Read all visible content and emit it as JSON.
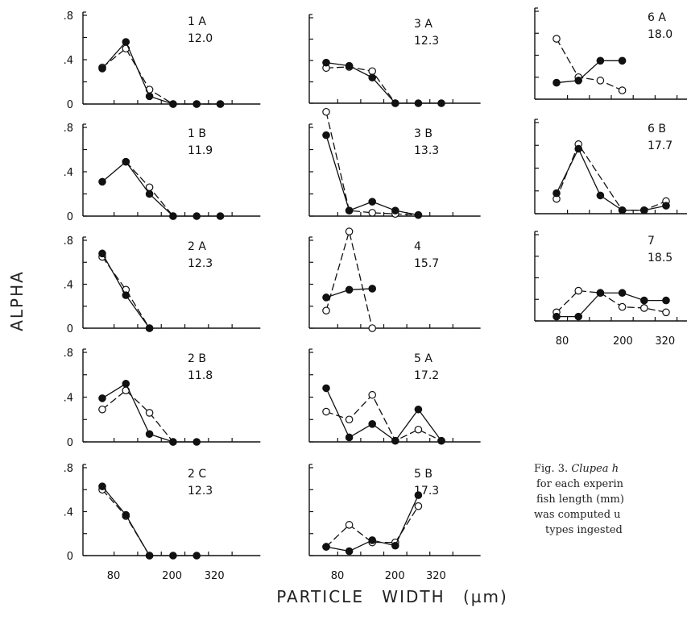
{
  "figure": {
    "ylabel": "ALPHA",
    "xlabel": "PARTICLE WIDTH (µm)",
    "y_ticks": [
      ".8",
      ".4",
      "0"
    ],
    "x_ticks": [
      "80",
      "200",
      "320"
    ],
    "caption": {
      "line1_prefix": "Fig. 3. ",
      "line1_italic": "Clupea h",
      "line2": "for each experin",
      "line3": "fish length (mm)",
      "line4": "was computed u",
      "line5": "types ingested"
    }
  },
  "chart_data": [
    {
      "id": "1A",
      "length": "12.0",
      "type": "line",
      "series": [
        {
          "marker": "filled",
          "points": [
            [
              1,
              0.32
            ],
            [
              2,
              0.56
            ],
            [
              3,
              0.07
            ],
            [
              4,
              0
            ],
            [
              5,
              0
            ],
            [
              6,
              0
            ]
          ]
        },
        {
          "marker": "open",
          "points": [
            [
              1,
              0.33
            ],
            [
              2,
              0.5
            ],
            [
              3,
              0.13
            ],
            [
              4,
              0
            ],
            [
              5,
              0
            ],
            [
              6,
              0
            ]
          ]
        }
      ]
    },
    {
      "id": "1B",
      "length": "11.9",
      "type": "line",
      "series": [
        {
          "marker": "filled",
          "points": [
            [
              1,
              0.31
            ],
            [
              2,
              0.49
            ],
            [
              3,
              0.2
            ],
            [
              4,
              0
            ],
            [
              5,
              0
            ],
            [
              6,
              0
            ]
          ]
        },
        {
          "marker": "open",
          "points": [
            [
              2,
              0.49
            ],
            [
              3,
              0.26
            ],
            [
              4,
              0
            ]
          ]
        }
      ]
    },
    {
      "id": "2A",
      "length": "12.3",
      "type": "line",
      "series": [
        {
          "marker": "filled",
          "points": [
            [
              1,
              0.68
            ],
            [
              2,
              0.3
            ],
            [
              3,
              0
            ]
          ]
        },
        {
          "marker": "open",
          "points": [
            [
              1,
              0.65
            ],
            [
              2,
              0.35
            ],
            [
              3,
              0
            ]
          ]
        }
      ]
    },
    {
      "id": "2B",
      "length": "11.8",
      "type": "line",
      "series": [
        {
          "marker": "filled",
          "points": [
            [
              1,
              0.39
            ],
            [
              2,
              0.52
            ],
            [
              3,
              0.07
            ],
            [
              4,
              0
            ],
            [
              5,
              0
            ]
          ]
        },
        {
          "marker": "open",
          "points": [
            [
              1,
              0.29
            ],
            [
              2,
              0.46
            ],
            [
              3,
              0.26
            ],
            [
              4,
              0
            ]
          ]
        }
      ]
    },
    {
      "id": "2C",
      "length": "12.3",
      "type": "line",
      "series": [
        {
          "marker": "filled",
          "points": [
            [
              1,
              0.63
            ],
            [
              2,
              0.37
            ],
            [
              3,
              0
            ],
            [
              4,
              0
            ],
            [
              5,
              0
            ]
          ]
        },
        {
          "marker": "open",
          "points": [
            [
              1,
              0.6
            ],
            [
              2,
              0.36
            ],
            [
              3,
              0
            ]
          ]
        }
      ]
    },
    {
      "id": "3A",
      "length": "12.3",
      "type": "line",
      "series": [
        {
          "marker": "filled",
          "points": [
            [
              1,
              0.38
            ],
            [
              2,
              0.35
            ],
            [
              3,
              0.24
            ],
            [
              4,
              0
            ],
            [
              5,
              0
            ],
            [
              6,
              0
            ]
          ]
        },
        {
          "marker": "open",
          "points": [
            [
              1,
              0.33
            ],
            [
              2,
              0.34
            ],
            [
              3,
              0.3
            ],
            [
              4,
              0
            ]
          ]
        }
      ]
    },
    {
      "id": "3B",
      "length": "13.3",
      "type": "line",
      "series": [
        {
          "marker": "filled",
          "points": [
            [
              1,
              0.73
            ],
            [
              2,
              0.05
            ],
            [
              3,
              0.13
            ],
            [
              4,
              0.05
            ],
            [
              5,
              0.01
            ]
          ]
        },
        {
          "marker": "open",
          "points": [
            [
              1,
              0.94
            ],
            [
              2,
              0.05
            ],
            [
              3,
              0.03
            ],
            [
              4,
              0.02
            ],
            [
              5,
              0.01
            ]
          ]
        }
      ]
    },
    {
      "id": "4",
      "length": "15.7",
      "type": "line",
      "series": [
        {
          "marker": "filled",
          "points": [
            [
              1,
              0.28
            ],
            [
              2,
              0.35
            ],
            [
              3,
              0.36
            ]
          ]
        },
        {
          "marker": "open",
          "points": [
            [
              1,
              0.16
            ],
            [
              2,
              0.88
            ],
            [
              3,
              0
            ]
          ]
        }
      ]
    },
    {
      "id": "5A",
      "length": "17.2",
      "type": "line",
      "series": [
        {
          "marker": "filled",
          "points": [
            [
              1,
              0.48
            ],
            [
              2,
              0.04
            ],
            [
              3,
              0.16
            ],
            [
              4,
              0.01
            ],
            [
              5,
              0.29
            ],
            [
              6,
              0.01
            ]
          ]
        },
        {
          "marker": "open",
          "points": [
            [
              1,
              0.27
            ],
            [
              2,
              0.2
            ],
            [
              3,
              0.42
            ],
            [
              4,
              0.01
            ],
            [
              5,
              0.11
            ],
            [
              6,
              0.01
            ]
          ]
        }
      ]
    },
    {
      "id": "5B",
      "length": "17.3",
      "type": "line",
      "series": [
        {
          "marker": "filled",
          "points": [
            [
              1,
              0.08
            ],
            [
              2,
              0.04
            ],
            [
              3,
              0.14
            ],
            [
              4,
              0.09
            ],
            [
              5,
              0.55
            ]
          ]
        },
        {
          "marker": "open",
          "points": [
            [
              1,
              0.08
            ],
            [
              2,
              0.28
            ],
            [
              3,
              0.12
            ],
            [
              4,
              0.12
            ],
            [
              5,
              0.45
            ]
          ]
        }
      ]
    },
    {
      "id": "6A",
      "length": "18.0",
      "type": "line",
      "series": [
        {
          "marker": "filled",
          "points": [
            [
              1,
              0.15
            ],
            [
              2,
              0.17
            ],
            [
              3,
              0.35
            ],
            [
              4,
              0.35
            ]
          ]
        },
        {
          "marker": "open",
          "points": [
            [
              1,
              0.55
            ],
            [
              2,
              0.2
            ],
            [
              3,
              0.17
            ],
            [
              4,
              0.08
            ]
          ]
        }
      ]
    },
    {
      "id": "6B",
      "length": "17.7",
      "type": "line",
      "series": [
        {
          "marker": "filled",
          "points": [
            [
              1,
              0.18
            ],
            [
              2,
              0.57
            ],
            [
              3,
              0.16
            ],
            [
              4,
              0.03
            ],
            [
              5,
              0.03
            ],
            [
              6,
              0.07
            ]
          ]
        },
        {
          "marker": "open",
          "points": [
            [
              1,
              0.13
            ],
            [
              2,
              0.61
            ],
            [
              4,
              0.03
            ],
            [
              5,
              0.03
            ],
            [
              6,
              0.11
            ]
          ]
        }
      ]
    },
    {
      "id": "7",
      "length": "18.5",
      "type": "line",
      "series": [
        {
          "marker": "filled",
          "points": [
            [
              1,
              0.04
            ],
            [
              2,
              0.04
            ],
            [
              3,
              0.26
            ],
            [
              4,
              0.26
            ],
            [
              5,
              0.19
            ],
            [
              6,
              0.19
            ]
          ]
        },
        {
          "marker": "open",
          "points": [
            [
              1,
              0.08
            ],
            [
              2,
              0.28
            ],
            [
              3,
              0.26
            ],
            [
              4,
              0.13
            ],
            [
              5,
              0.12
            ],
            [
              6,
              0.08
            ]
          ]
        }
      ]
    }
  ]
}
